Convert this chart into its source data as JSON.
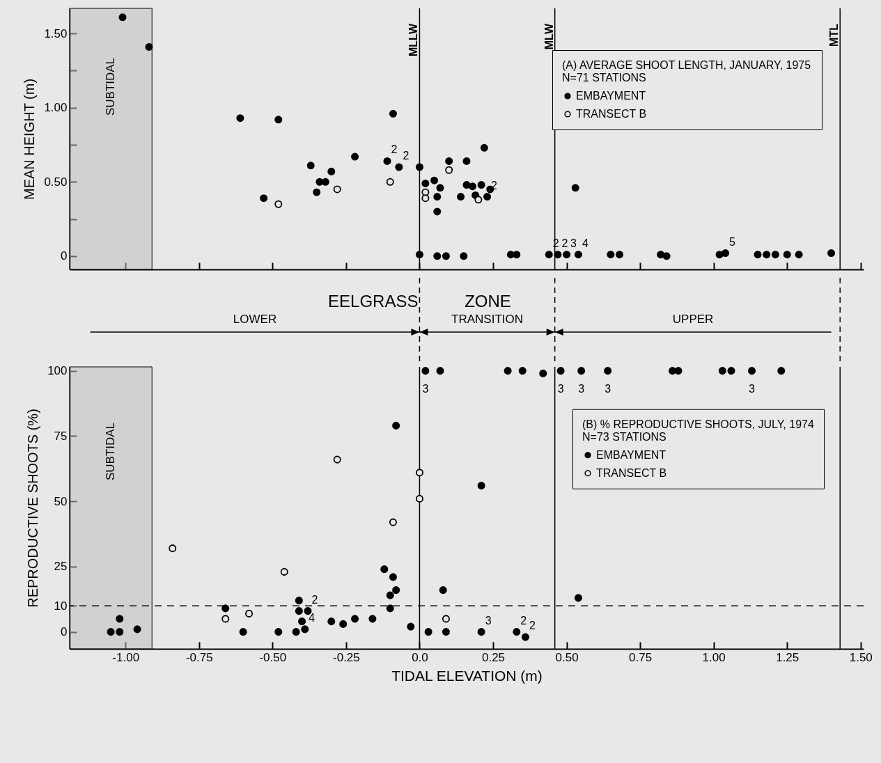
{
  "chart_data": [
    {
      "type": "scatter",
      "title": "(A) AVERAGE SHOOT LENGTH, JANUARY, 1975",
      "subtitle": "N=71 STATIONS",
      "ylabel": "MEAN HEIGHT (m)",
      "xlim": [
        -1.19,
        1.51
      ],
      "ylim": [
        -0.09,
        1.67
      ],
      "xticks": [
        {
          "value": -1,
          "label": null
        },
        {
          "value": -0.75,
          "label": null
        },
        {
          "value": -0.5,
          "label": null
        },
        {
          "value": -0.25,
          "label": null
        },
        {
          "value": 0,
          "label": null
        },
        {
          "value": 0.25,
          "label": null
        },
        {
          "value": 0.5,
          "label": null
        },
        {
          "value": 0.75,
          "label": null
        },
        {
          "value": 1,
          "label": null
        },
        {
          "value": 1.25,
          "label": null
        },
        {
          "value": 1.5,
          "label": null
        }
      ],
      "yticks": [
        0,
        {
          "value": 0.25,
          "label": null
        },
        {
          "value": 0.5,
          "label": "0.50"
        },
        {
          "value": 0.75,
          "label": null
        },
        {
          "value": 1,
          "label": "1.00"
        },
        {
          "value": 1.25,
          "label": null
        },
        {
          "value": 1.5,
          "label": "1.50"
        }
      ],
      "tick_labels": "y",
      "grid": false,
      "legend": "top right",
      "marker": "circle",
      "series": [
        {
          "name": "EMBAYMENT",
          "color": "#000000",
          "x": [
            -1.01,
            -0.92,
            -0.61,
            -0.48,
            -0.09,
            -0.53,
            -0.37,
            -0.34,
            -0.32,
            -0.35,
            -0.3,
            -0.22,
            -0.11,
            -0.07,
            0.0,
            0.0,
            0.06,
            0.09,
            0.02,
            0.05,
            0.07,
            0.06,
            0.06,
            0.1,
            0.16,
            0.22,
            0.16,
            0.18,
            0.14,
            0.19,
            0.21,
            0.24,
            0.23,
            0.53,
            0.15,
            0.31,
            0.33,
            0.44,
            0.47,
            0.5,
            0.54,
            0.65,
            0.68,
            0.82,
            0.84,
            1.02,
            1.04,
            1.15,
            1.18,
            1.21,
            1.25,
            1.29,
            1.4
          ],
          "values": [
            1.61,
            1.41,
            0.93,
            0.92,
            0.96,
            0.39,
            0.61,
            0.5,
            0.5,
            0.43,
            0.57,
            0.67,
            0.64,
            0.6,
            0.6,
            0.01,
            0.0,
            0.0,
            0.49,
            0.51,
            0.46,
            0.4,
            0.3,
            0.64,
            0.64,
            0.73,
            0.48,
            0.47,
            0.4,
            0.41,
            0.48,
            0.45,
            0.4,
            0.46,
            0.0,
            0.01,
            0.01,
            0.01,
            0.01,
            0.01,
            0.01,
            0.01,
            0.01,
            0.01,
            0.0,
            0.01,
            0.02,
            0.01,
            0.01,
            0.01,
            0.01,
            0.01,
            0.02
          ]
        },
        {
          "name": "TRANSECT B",
          "color": "#000000",
          "x": [
            -0.48,
            -0.28,
            -0.1,
            0.02,
            0.02,
            0.1,
            0.2
          ],
          "values": [
            0.35,
            0.45,
            0.5,
            0.43,
            0.39,
            0.58,
            0.38
          ]
        }
      ],
      "ref_lines": [
        {
          "axis": "x",
          "value": 0,
          "label": "MLLW"
        },
        {
          "axis": "x",
          "value": 0.46,
          "label": "MLW"
        },
        {
          "axis": "x",
          "value": 1.43,
          "label": "MTL"
        }
      ],
      "bands": [
        {
          "axis": "x",
          "from": -1.19,
          "to": -0.91,
          "label": "SUBTIDAL",
          "color": "#bdbdbd"
        }
      ],
      "annotations": [
        {
          "text": "2",
          "x": -0.11,
          "y": 0.64
        },
        {
          "text": "2",
          "x": -0.07,
          "y": 0.6
        },
        {
          "text": "2",
          "x": 0.23,
          "y": 0.4
        },
        {
          "text": "2",
          "x": 0.44,
          "y": 0.01
        },
        {
          "text": "2",
          "x": 0.47,
          "y": 0.01
        },
        {
          "text": "3",
          "x": 0.5,
          "y": 0.01
        },
        {
          "text": "4",
          "x": 0.54,
          "y": 0.01
        },
        {
          "text": "5",
          "x": 1.04,
          "y": 0.02
        }
      ]
    },
    {
      "type": "scatter",
      "title": "(B) % REPRODUCTIVE SHOOTS, JULY, 1974",
      "subtitle": "N=73 STATIONS",
      "xlabel": "TIDAL ELEVATION (m)",
      "ylabel": "REPRODUCTIVE SHOOTS (%)",
      "xlim": [
        -1.19,
        1.51
      ],
      "ylim": [
        -6.5,
        101.5
      ],
      "xticks": [
        {
          "value": -1,
          "label": "-1.00"
        },
        -0.75,
        {
          "value": -0.5,
          "label": "-0.50"
        },
        -0.25,
        {
          "value": 0,
          "label": "0.0"
        },
        0.25,
        {
          "value": 0.5,
          "label": "0.50"
        },
        0.75,
        {
          "value": 1,
          "label": "1.00"
        },
        1.25,
        {
          "value": 1.5,
          "label": "1.50"
        }
      ],
      "yticks": [
        0,
        10,
        25,
        50,
        75,
        100
      ],
      "grid": false,
      "legend": "right",
      "marker": "circle",
      "series": [
        {
          "name": "EMBAYMENT",
          "color": "#000000",
          "x": [
            -1.05,
            -1.02,
            -1.02,
            -0.96,
            -0.66,
            -0.6,
            -0.48,
            -0.42,
            -0.41,
            -0.41,
            -0.38,
            -0.4,
            -0.39,
            -0.3,
            -0.26,
            -0.22,
            -0.16,
            -0.08,
            -0.12,
            -0.09,
            -0.08,
            -0.1,
            -0.1,
            -0.03,
            0.02,
            0.07,
            0.03,
            0.08,
            0.09,
            0.3,
            0.35,
            0.42,
            0.48,
            0.55,
            0.64,
            0.86,
            0.88,
            1.03,
            1.06,
            1.13,
            1.23,
            0.21,
            0.54,
            0.21,
            0.33,
            0.36
          ],
          "values": [
            0,
            0,
            5,
            1,
            9,
            0,
            0,
            0,
            12,
            8,
            8,
            4,
            1,
            4,
            3,
            5,
            5,
            79,
            24,
            21,
            16,
            14,
            9,
            2,
            100,
            100,
            0,
            16,
            0,
            100,
            100,
            99,
            100,
            100,
            100,
            100,
            100,
            100,
            100,
            100,
            100,
            56,
            13,
            0,
            0,
            -2
          ]
        },
        {
          "name": "TRANSECT B",
          "color": "#000000",
          "x": [
            -0.84,
            -0.46,
            -0.66,
            -0.58,
            -0.28,
            -0.09,
            0.0,
            0.0,
            0.09
          ],
          "values": [
            32,
            23,
            5,
            7,
            66,
            42,
            61,
            51,
            5
          ]
        }
      ],
      "ref_lines": [
        {
          "axis": "x",
          "value": 0,
          "label": null
        },
        {
          "axis": "x",
          "value": 0.46,
          "label": null
        },
        {
          "axis": "x",
          "value": 1.43,
          "label": null
        },
        {
          "axis": "y",
          "value": 10,
          "label": null,
          "line_style": "dashed"
        }
      ],
      "bands": [
        {
          "axis": "x",
          "from": -1.19,
          "to": -0.91,
          "label": "SUBTIDAL",
          "color": "#bdbdbd"
        }
      ],
      "annotations": [
        "EELGRASS ZONE",
        "LOWER",
        "TRANSITION",
        "UPPER",
        {
          "text": "3",
          "x": 0.02,
          "y": 100
        },
        {
          "text": "2",
          "x": -0.38,
          "y": 8
        },
        {
          "text": "4",
          "x": -0.39,
          "y": 1
        },
        {
          "text": "3",
          "x": 0.48,
          "y": 100
        },
        {
          "text": "3",
          "x": 0.55,
          "y": 100
        },
        {
          "text": "3",
          "x": 0.64,
          "y": 100
        },
        {
          "text": "3",
          "x": 1.13,
          "y": 100
        },
        {
          "text": "3",
          "x": 0.21,
          "y": 0
        },
        {
          "text": "2",
          "x": 0.33,
          "y": 0
        },
        {
          "text": "2",
          "x": 0.36,
          "y": -2
        }
      ]
    }
  ]
}
